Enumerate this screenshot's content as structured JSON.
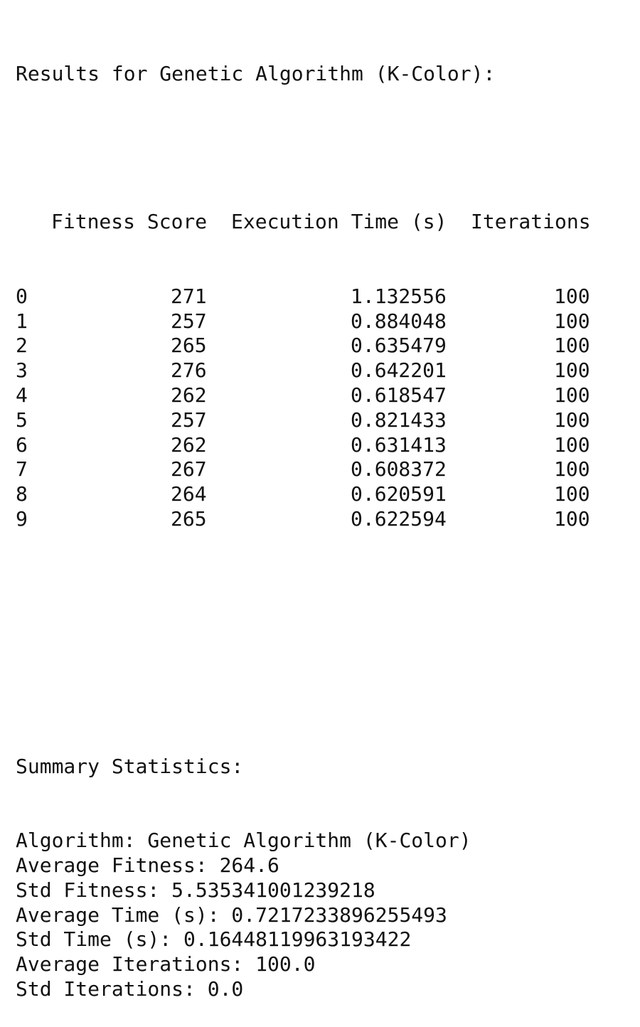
{
  "title": "Results for Genetic Algorithm (K-Color):",
  "table": {
    "columns": [
      "Fitness Score",
      "Execution Time (s)",
      "Iterations"
    ],
    "rows": [
      {
        "index": "0",
        "fitness": "271",
        "time": "1.132556",
        "iterations": "100"
      },
      {
        "index": "1",
        "fitness": "257",
        "time": "0.884048",
        "iterations": "100"
      },
      {
        "index": "2",
        "fitness": "265",
        "time": "0.635479",
        "iterations": "100"
      },
      {
        "index": "3",
        "fitness": "276",
        "time": "0.642201",
        "iterations": "100"
      },
      {
        "index": "4",
        "fitness": "262",
        "time": "0.618547",
        "iterations": "100"
      },
      {
        "index": "5",
        "fitness": "257",
        "time": "0.821433",
        "iterations": "100"
      },
      {
        "index": "6",
        "fitness": "262",
        "time": "0.631413",
        "iterations": "100"
      },
      {
        "index": "7",
        "fitness": "267",
        "time": "0.608372",
        "iterations": "100"
      },
      {
        "index": "8",
        "fitness": "264",
        "time": "0.620591",
        "iterations": "100"
      },
      {
        "index": "9",
        "fitness": "265",
        "time": "0.622594",
        "iterations": "100"
      }
    ]
  },
  "summary": {
    "heading": "Summary Statistics:",
    "lines": [
      "Algorithm: Genetic Algorithm (K-Color)",
      "Average Fitness: 264.6",
      "Std Fitness: 5.535341001239218",
      "Average Time (s): 0.7217233896255493",
      "Std Time (s): 0.16448119963193422",
      "Average Iterations: 100.0",
      "Std Iterations: 0.0"
    ]
  }
}
